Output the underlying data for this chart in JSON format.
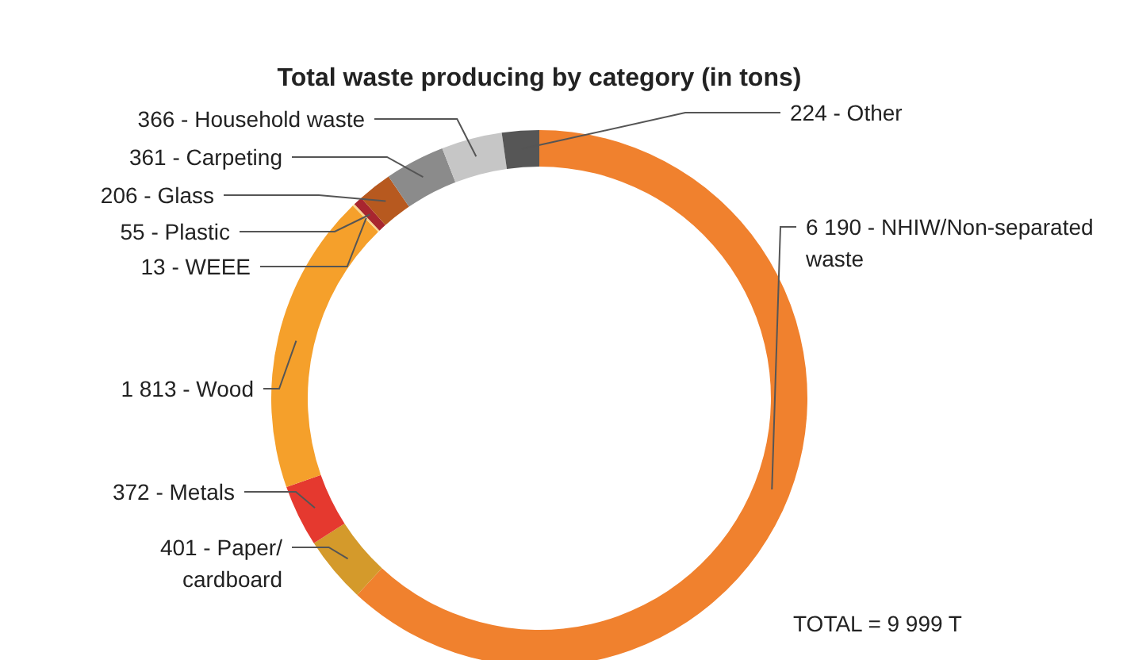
{
  "chart_data": {
    "type": "donut",
    "title": "Total waste producing by category (in tons)",
    "categories": [
      "NHIW/Non-separated waste",
      "Paper/cardboard",
      "Metals",
      "Wood",
      "WEEE",
      "Plastic",
      "Glass",
      "Carpeting",
      "Household waste",
      "Other"
    ],
    "values": [
      6190,
      401,
      372,
      1813,
      13,
      55,
      206,
      361,
      366,
      224
    ],
    "value_labels": [
      "6 190",
      "401",
      "372",
      "1 813",
      "13",
      "55",
      "206",
      "361",
      "366",
      "224"
    ],
    "colors": [
      "#f0812e",
      "#d49a2b",
      "#e5392f",
      "#f5a02b",
      "#f8d58f",
      "#a8262f",
      "#b7591f",
      "#8b8b8b",
      "#c6c6c6",
      "#565656"
    ],
    "annotations": [
      "TOTAL = 9 999 T"
    ]
  }
}
